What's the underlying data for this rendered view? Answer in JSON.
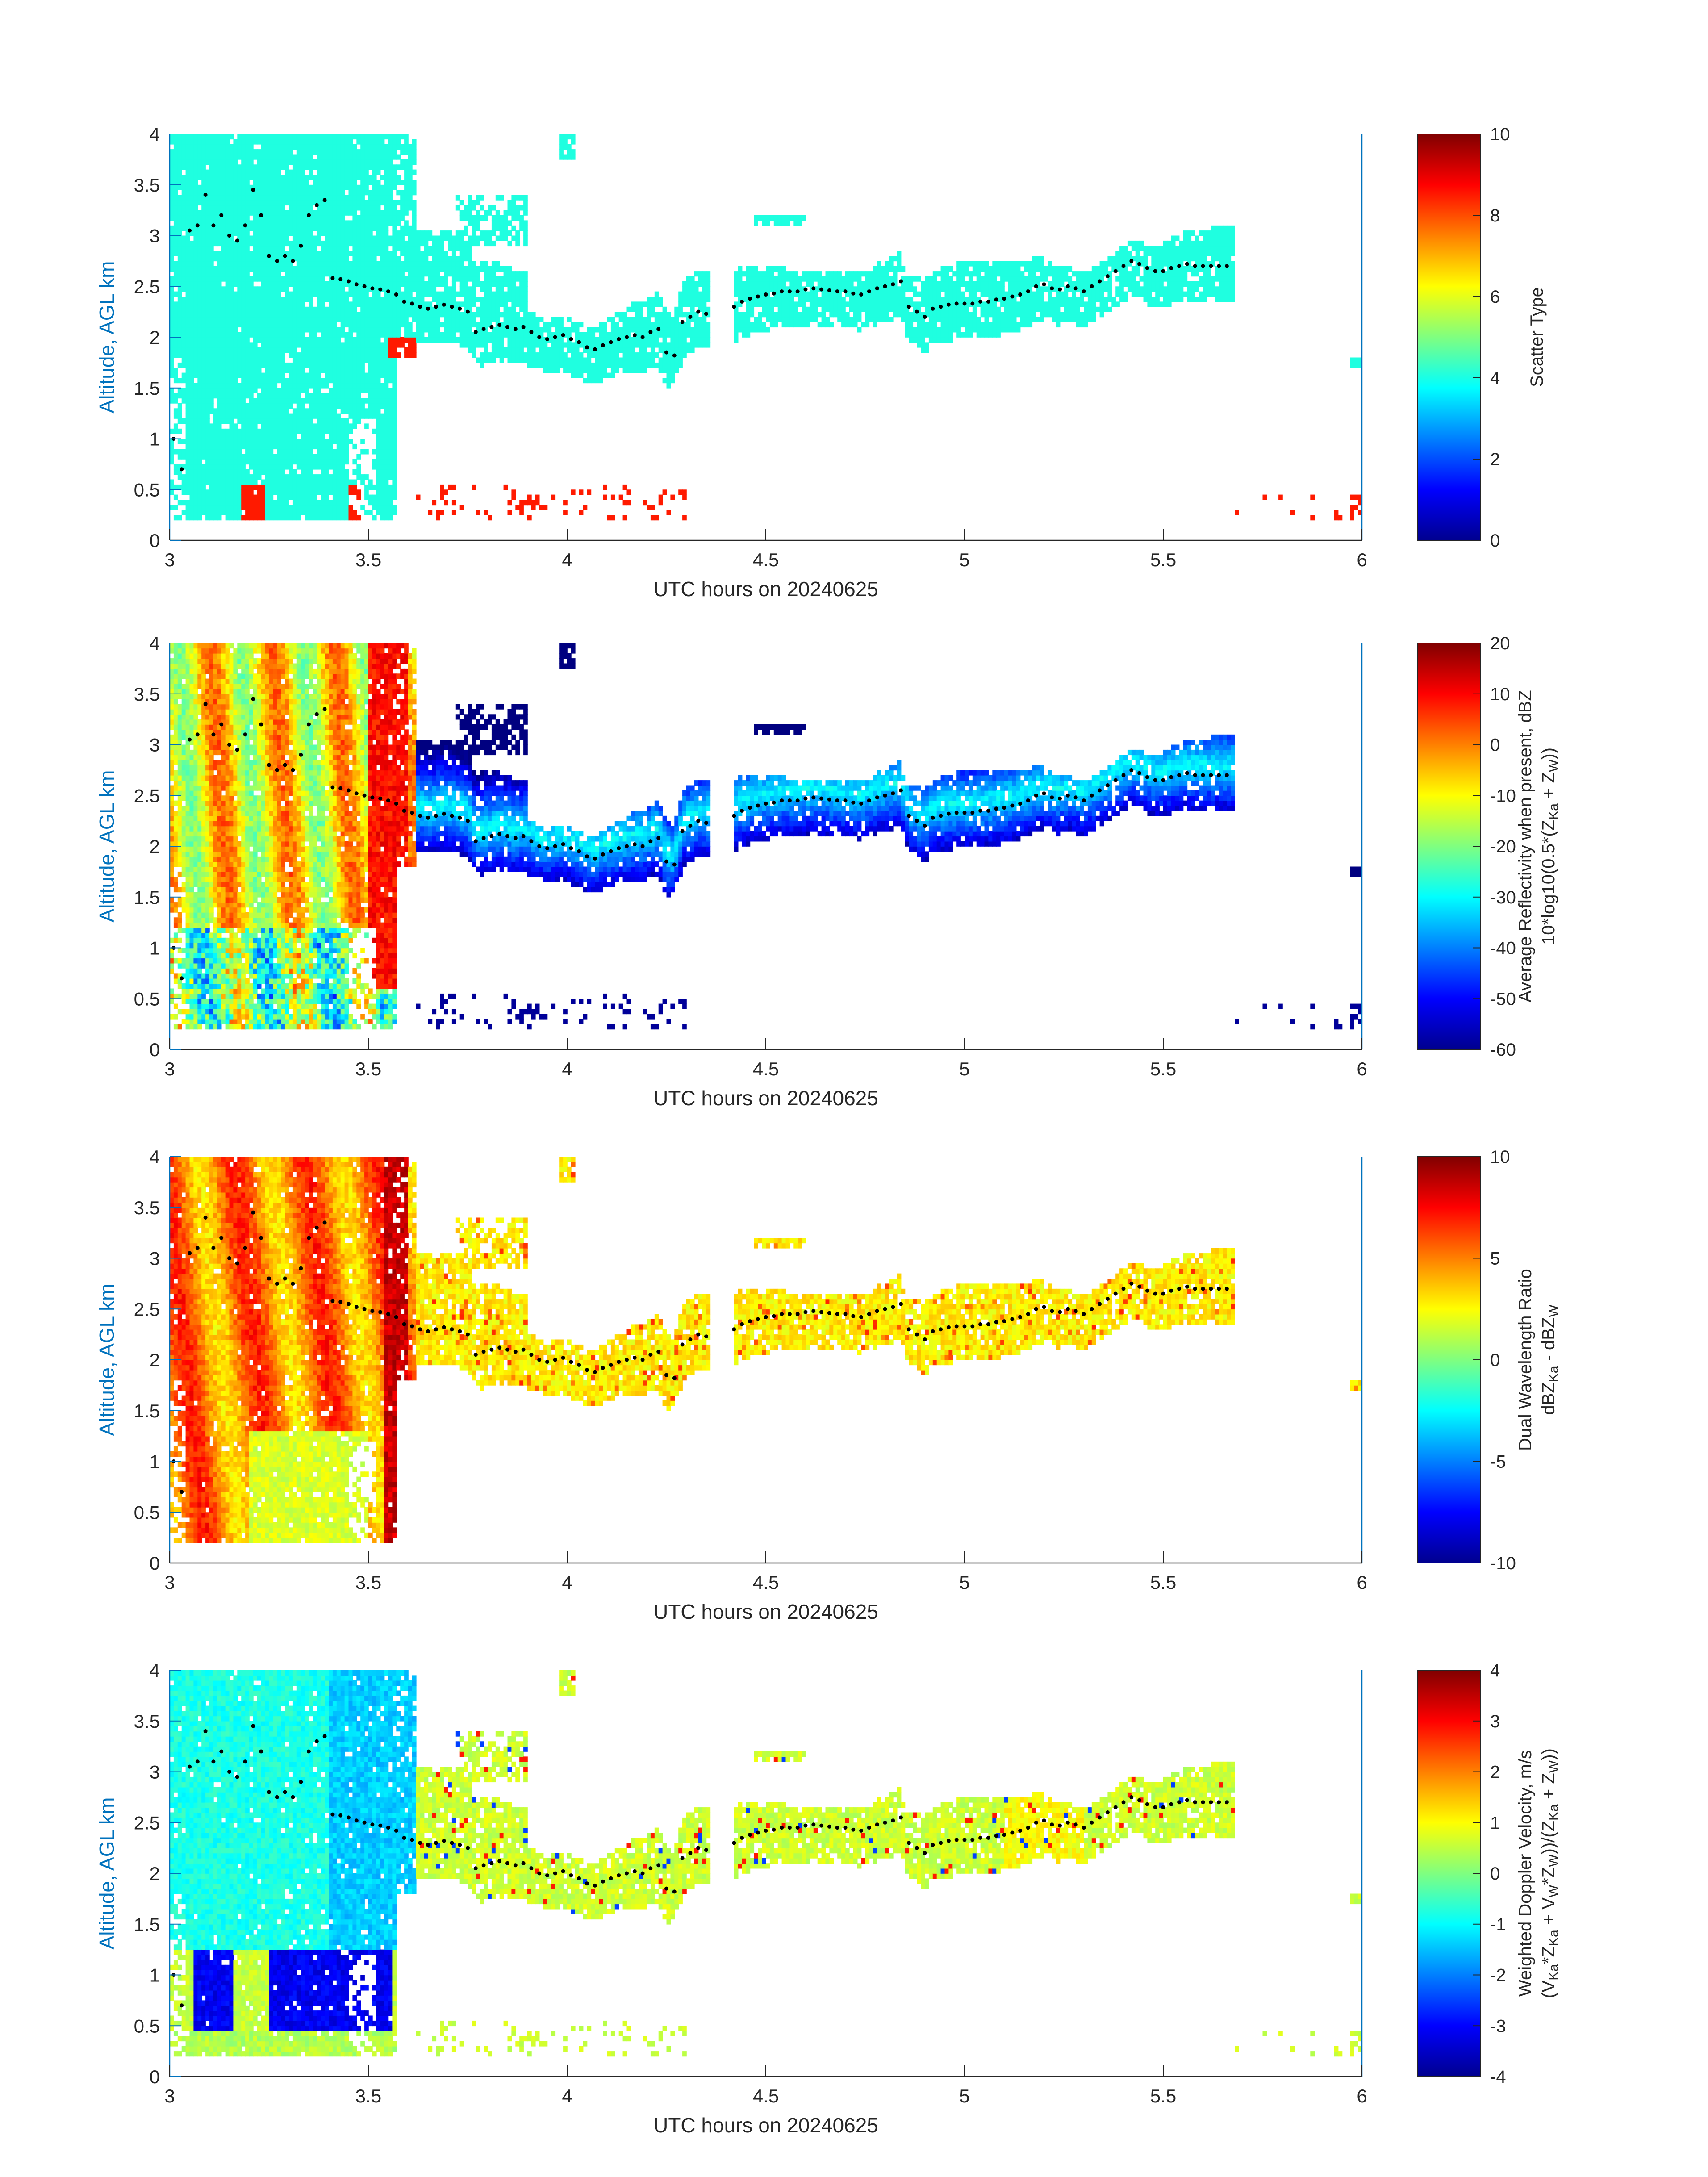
{
  "chart_data": [
    {
      "type": "heatmap",
      "xlabel": "UTC hours on 20240625",
      "ylabel": "Altitude, AGL km",
      "xlim": [
        3,
        6
      ],
      "ylim": [
        0,
        4
      ],
      "xticks": [
        "3",
        "3.5",
        "4",
        "4.5",
        "5",
        "5.5",
        "6"
      ],
      "yticks": [
        "0",
        "0.5",
        "1",
        "1.5",
        "2",
        "2.5",
        "3",
        "3.5",
        "4"
      ],
      "colorbar": {
        "labels": [
          "Scatter Type"
        ],
        "ticks": [
          "0",
          "2",
          "4",
          "6",
          "8",
          "10"
        ],
        "range": [
          0,
          10
        ]
      },
      "mode": "scatter",
      "palette": "jet"
    },
    {
      "type": "heatmap",
      "xlabel": "UTC hours on 20240625",
      "ylabel": "Altitude, AGL km",
      "xlim": [
        3,
        6
      ],
      "ylim": [
        0,
        4
      ],
      "xticks": [
        "3",
        "3.5",
        "4",
        "4.5",
        "5",
        "5.5",
        "6"
      ],
      "yticks": [
        "0",
        "0.5",
        "1",
        "1.5",
        "2",
        "2.5",
        "3",
        "3.5",
        "4"
      ],
      "colorbar": {
        "labels": [
          "Average Reflectivity when present, dBZ",
          "10*log10(0.5*(Z_Ka + Z_W))"
        ],
        "ticks": [
          "-60",
          "-50",
          "-40",
          "-30",
          "-20",
          "-10",
          "0",
          "10",
          "20"
        ],
        "range": [
          -60,
          20
        ]
      },
      "mode": "refl",
      "palette": "jet"
    },
    {
      "type": "heatmap",
      "xlabel": "UTC hours on 20240625",
      "ylabel": "Altitude, AGL km",
      "xlim": [
        3,
        6
      ],
      "ylim": [
        0,
        4
      ],
      "xticks": [
        "3",
        "3.5",
        "4",
        "4.5",
        "5",
        "5.5",
        "6"
      ],
      "yticks": [
        "0",
        "0.5",
        "1",
        "1.5",
        "2",
        "2.5",
        "3",
        "3.5",
        "4"
      ],
      "colorbar": {
        "labels": [
          "Dual Wavelength Ratio",
          "dBZ_Ka - dBZ_W"
        ],
        "ticks": [
          "-10",
          "-5",
          "0",
          "5",
          "10"
        ],
        "range": [
          -10,
          10
        ]
      },
      "mode": "dwr",
      "palette": "jet"
    },
    {
      "type": "heatmap",
      "xlabel": "UTC hours on 20240625",
      "ylabel": "Altitude, AGL km",
      "xlim": [
        3,
        6
      ],
      "ylim": [
        0,
        4
      ],
      "xticks": [
        "3",
        "3.5",
        "4",
        "4.5",
        "5",
        "5.5",
        "6"
      ],
      "yticks": [
        "0",
        "0.5",
        "1",
        "1.5",
        "2",
        "2.5",
        "3",
        "3.5",
        "4"
      ],
      "colorbar": {
        "labels": [
          "Weighted Doppler Velocity, m/s",
          "(V_Ka*Z_Ka + V_W*Z_W))/(Z_Ka + Z_W))"
        ],
        "ticks": [
          "-4",
          "-3",
          "-2",
          "-1",
          "0",
          "1",
          "2",
          "3",
          "4"
        ],
        "range": [
          -4,
          4
        ]
      },
      "mode": "vel",
      "palette": "jet"
    }
  ],
  "cloud_base_dots": {
    "x": [
      3.01,
      3.03,
      3.05,
      3.07,
      3.09,
      3.11,
      3.13,
      3.15,
      3.17,
      3.19,
      3.21,
      3.23,
      3.25,
      3.27,
      3.29,
      3.31,
      3.33,
      3.35,
      3.37,
      3.39,
      3.41,
      3.43,
      3.45,
      3.47,
      3.49,
      3.51,
      3.53,
      3.55,
      3.57,
      3.59,
      3.61,
      3.63,
      3.65,
      3.67,
      3.69,
      3.71,
      3.73,
      3.75,
      3.77,
      3.79,
      3.81,
      3.83,
      3.85,
      3.87,
      3.89,
      3.91,
      3.93,
      3.95,
      3.97,
      3.99,
      4.01,
      4.03,
      4.05,
      4.07,
      4.09,
      4.11,
      4.13,
      4.15,
      4.17,
      4.19,
      4.21,
      4.23,
      4.25,
      4.27,
      4.29,
      4.31,
      4.33,
      4.35,
      4.42,
      4.44,
      4.46,
      4.48,
      4.5,
      4.52,
      4.54,
      4.56,
      4.58,
      4.6,
      4.62,
      4.64,
      4.66,
      4.68,
      4.7,
      4.72,
      4.74,
      4.76,
      4.78,
      4.8,
      4.82,
      4.84,
      4.86,
      4.88,
      4.9,
      4.92,
      4.94,
      4.96,
      4.98,
      5.0,
      5.02,
      5.04,
      5.06,
      5.08,
      5.1,
      5.12,
      5.14,
      5.16,
      5.18,
      5.2,
      5.22,
      5.24,
      5.26,
      5.28,
      5.3,
      5.32,
      5.34,
      5.36,
      5.38,
      5.4,
      5.42,
      5.44,
      5.46,
      5.48,
      5.5,
      5.52,
      5.54,
      5.56,
      5.58,
      5.6,
      5.62,
      5.64,
      5.66
    ],
    "y": [
      1.0,
      0.7,
      3.05,
      3.1,
      3.4,
      3.1,
      3.2,
      3.0,
      2.95,
      3.1,
      3.45,
      3.2,
      2.8,
      2.75,
      2.8,
      2.75,
      2.9,
      3.2,
      3.3,
      3.35,
      2.58,
      2.57,
      2.55,
      2.52,
      2.5,
      2.48,
      2.47,
      2.45,
      2.42,
      2.35,
      2.33,
      2.3,
      2.28,
      2.3,
      2.32,
      2.3,
      2.28,
      2.25,
      2.05,
      2.08,
      2.1,
      2.12,
      2.1,
      2.08,
      2.1,
      2.05,
      2.0,
      1.98,
      2.0,
      2.02,
      1.98,
      1.95,
      1.9,
      1.88,
      1.92,
      1.95,
      1.98,
      2.0,
      2.02,
      2.0,
      2.05,
      2.08,
      1.85,
      1.82,
      2.15,
      2.2,
      2.25,
      2.23,
      2.3,
      2.35,
      2.38,
      2.4,
      2.42,
      2.43,
      2.45,
      2.45,
      2.45,
      2.47,
      2.48,
      2.47,
      2.46,
      2.45,
      2.45,
      2.43,
      2.42,
      2.45,
      2.48,
      2.5,
      2.52,
      2.55,
      2.3,
      2.25,
      2.2,
      2.28,
      2.3,
      2.32,
      2.33,
      2.33,
      2.33,
      2.35,
      2.35,
      2.37,
      2.38,
      2.4,
      2.42,
      2.45,
      2.5,
      2.52,
      2.48,
      2.47,
      2.5,
      2.48,
      2.45,
      2.5,
      2.55,
      2.6,
      2.65,
      2.7,
      2.75,
      2.72,
      2.68,
      2.65,
      2.65,
      2.68,
      2.7,
      2.72,
      2.7,
      2.7,
      2.7,
      2.7,
      2.7
    ]
  }
}
